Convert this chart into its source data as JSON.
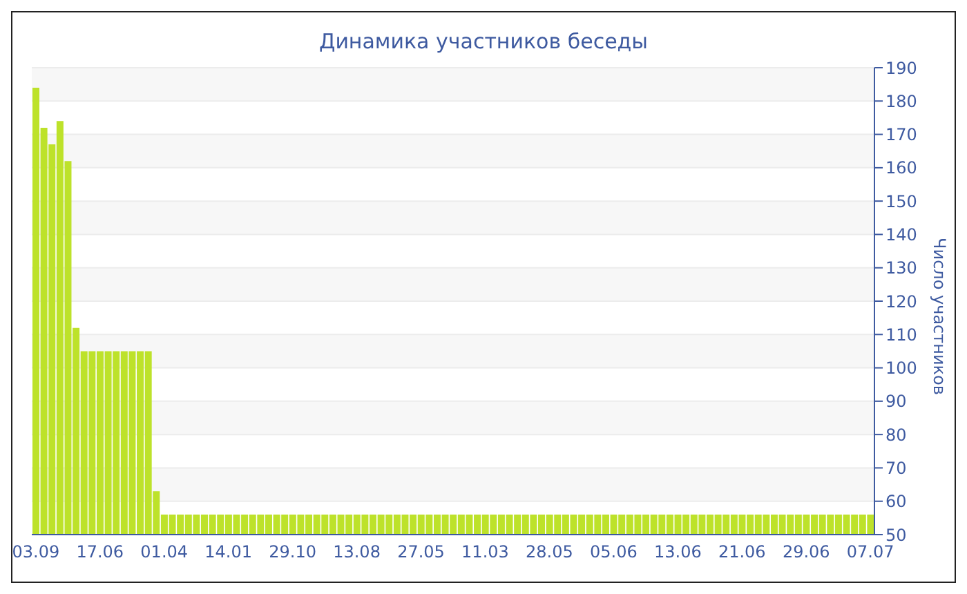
{
  "chart_data": {
    "type": "bar",
    "title": "Динамика участников беседы",
    "ylabel": "Число участников",
    "categories": [
      "03.09",
      null,
      null,
      null,
      null,
      null,
      null,
      null,
      "17.06",
      null,
      null,
      null,
      null,
      null,
      null,
      null,
      "01.04",
      null,
      null,
      null,
      null,
      null,
      null,
      null,
      "14.01",
      null,
      null,
      null,
      null,
      null,
      null,
      null,
      "29.10",
      null,
      null,
      null,
      null,
      null,
      null,
      null,
      "13.08",
      null,
      null,
      null,
      null,
      null,
      null,
      null,
      "27.05",
      null,
      null,
      null,
      null,
      null,
      null,
      null,
      "11.03",
      null,
      null,
      null,
      null,
      null,
      null,
      null,
      "28.05",
      null,
      null,
      null,
      null,
      null,
      null,
      null,
      "05.06",
      null,
      null,
      null,
      null,
      null,
      null,
      null,
      "13.06",
      null,
      null,
      null,
      null,
      null,
      null,
      null,
      "21.06",
      null,
      null,
      null,
      null,
      null,
      null,
      null,
      "29.06",
      null,
      null,
      null,
      null,
      null,
      null,
      null,
      "07.07"
    ],
    "values": [
      184,
      172,
      167,
      174,
      162,
      112,
      105,
      105,
      105,
      105,
      105,
      105,
      105,
      105,
      105,
      63,
      56,
      56,
      56,
      56,
      56,
      56,
      56,
      56,
      56,
      56,
      56,
      56,
      56,
      56,
      56,
      56,
      56,
      56,
      56,
      56,
      56,
      56,
      56,
      56,
      56,
      56,
      56,
      56,
      56,
      56,
      56,
      56,
      56,
      56,
      56,
      56,
      56,
      56,
      56,
      56,
      56,
      56,
      56,
      56,
      56,
      56,
      56,
      56,
      56,
      56,
      56,
      56,
      56,
      56,
      56,
      56,
      56,
      56,
      56,
      56,
      56,
      56,
      56,
      56,
      56,
      56,
      56,
      56,
      56,
      56,
      56,
      56,
      56,
      56,
      56,
      56,
      56,
      56,
      56,
      56,
      56,
      56,
      56,
      56,
      56,
      56,
      56,
      56,
      56
    ],
    "color": "#bde22a",
    "ylim": [
      50,
      190
    ],
    "yticks": [
      50,
      60,
      70,
      80,
      90,
      100,
      110,
      120,
      130,
      140,
      150,
      160,
      170,
      180,
      190
    ],
    "grid": "y",
    "legend": false
  }
}
